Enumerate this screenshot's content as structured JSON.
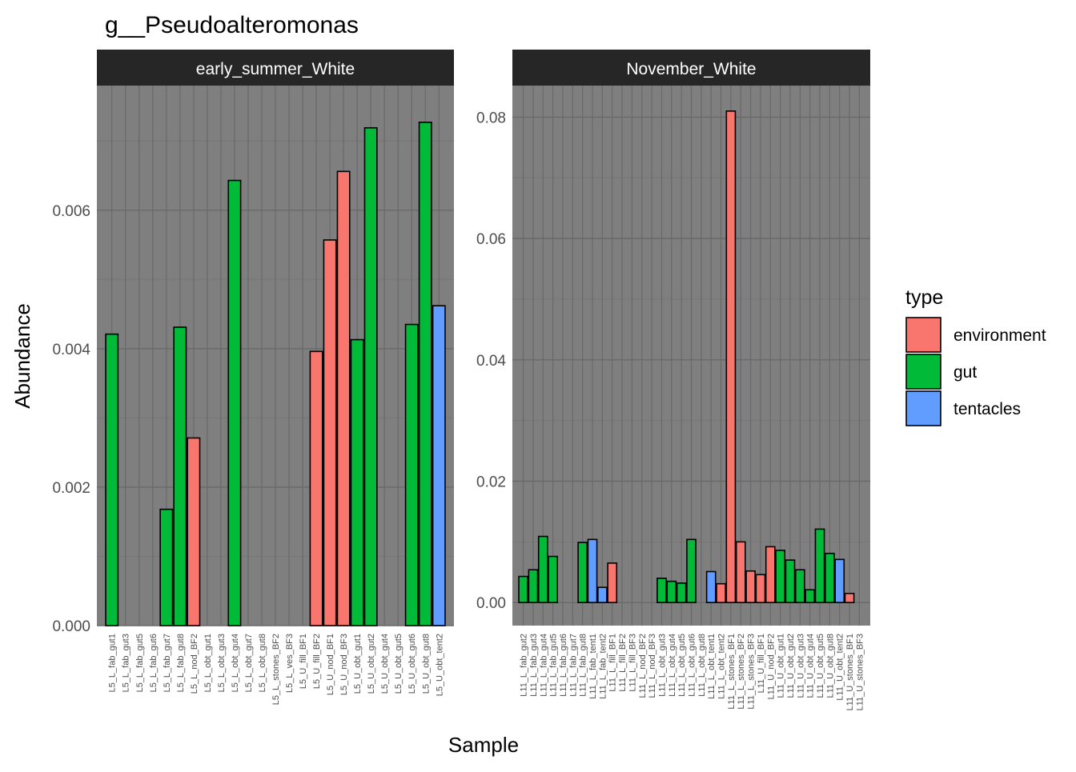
{
  "colors": {
    "environment": "#F8766D",
    "gut": "#00BA38",
    "tentacles": "#619CFF",
    "panel_background": "#7f7f7f",
    "strip_background": "#262626",
    "grid_major": "#696969",
    "grid_minor": "#767676"
  },
  "legend": {
    "title": "type",
    "items": [
      {
        "key": "environment",
        "label": "environment"
      },
      {
        "key": "gut",
        "label": "gut"
      },
      {
        "key": "tentacles",
        "label": "tentacles"
      }
    ]
  },
  "chart_data": {
    "type": "bar",
    "title": "g__Pseudoalteromonas",
    "xlabel": "Sample",
    "ylabel": "Abundance",
    "grid": true,
    "legend_position": "right",
    "facets": [
      {
        "name": "early_summer_White",
        "ylim": [
          0,
          0.0078
        ],
        "y_breaks": [
          0,
          0.002,
          0.004,
          0.006
        ],
        "y_tick_labels": [
          "0.000",
          "0.002",
          "0.004",
          "0.006"
        ],
        "categories": [
          "L5_L_fab_gut1",
          "L5_L_fab_gut3",
          "L5_L_fab_gut5",
          "L5_L_fab_gut6",
          "L5_L_fab_gut7",
          "L5_L_fab_gut8",
          "L5_L_nod_BF2",
          "L5_L_obt_gut1",
          "L5_L_obt_gut3",
          "L5_L_obt_gut4",
          "L5_L_obt_gut7",
          "L5_L_obt_gut8",
          "L5_L_stones_BF2",
          "L5_L_ves_BF3",
          "L5_U_fill_BF1",
          "L5_U_fill_BF2",
          "L5_U_nod_BF1",
          "L5_U_nod_BF3",
          "L5_U_obt_gut1",
          "L5_U_obt_gut2",
          "L5_U_obt_gut4",
          "L5_U_obt_gut5",
          "L5_U_obt_gut6",
          "L5_U_obt_gut8",
          "L5_U_obt_tent2"
        ],
        "values": [
          0.00421,
          0,
          0,
          0,
          0.00168,
          0.00431,
          0.00271,
          0,
          0,
          0.00643,
          0,
          0,
          0,
          0,
          0,
          0.00396,
          0.00557,
          0.00656,
          0.00413,
          0.00719,
          0,
          0,
          0.00435,
          0.00727,
          0.00462
        ],
        "types": [
          "gut",
          "gut",
          "gut",
          "gut",
          "gut",
          "gut",
          "environment",
          "gut",
          "gut",
          "gut",
          "gut",
          "gut",
          "environment",
          "environment",
          "environment",
          "environment",
          "environment",
          "environment",
          "gut",
          "gut",
          "gut",
          "gut",
          "gut",
          "gut",
          "tentacles"
        ]
      },
      {
        "name": "November_White",
        "ylim": [
          -0.0038,
          0.0852
        ],
        "y_breaks": [
          0,
          0.02,
          0.04,
          0.06,
          0.08
        ],
        "y_tick_labels": [
          "0.00",
          "0.02",
          "0.04",
          "0.06",
          "0.08"
        ],
        "categories": [
          "L11_L_fab_gut2",
          "L11_L_fab_gut3",
          "L11_L_fab_gut4",
          "L11_L_fab_gut5",
          "L11_L_fab_gut6",
          "L11_L_fab_gut7",
          "L11_L_fab_gut8",
          "L11_L_fab_tent1",
          "L11_L_fab_tent2",
          "L11_L_fill_BF1",
          "L11_L_fill_BF2",
          "L11_L_fill_BF3",
          "L11_L_nod_BF2",
          "L11_L_nod_BF3",
          "L11_L_obt_gut3",
          "L11_L_obt_gut4",
          "L11_L_obt_gut5",
          "L11_L_obt_gut6",
          "L11_L_obt_gut8",
          "L11_L_obt_tent1",
          "L11_L_obt_tent2",
          "L11_L_stones_BF1",
          "L11_L_stones_BF2",
          "L11_L_stones_BF3",
          "L11_U_fill_BF1",
          "L11_U_nod_BF2",
          "L11_U_obt_gut1",
          "L11_U_obt_gut2",
          "L11_U_obt_gut3",
          "L11_U_obt_gut4",
          "L11_U_obt_gut5",
          "L11_U_obt_gut8",
          "L11_U_obt_tent2",
          "L11_U_stones_BF1",
          "L11_U_stones_BF3"
        ],
        "values": [
          0.0043,
          0.0054,
          0.0109,
          0.0076,
          0,
          0,
          0.0099,
          0.0104,
          0.0025,
          0.0065,
          0,
          0,
          0,
          0,
          0.004,
          0.0035,
          0.0032,
          0.0104,
          0,
          0.0051,
          0.0031,
          0.081,
          0.01,
          0.0052,
          0.0046,
          0.0092,
          0.0086,
          0.007,
          0.0054,
          0.0021,
          0.0121,
          0.0081,
          0.0071,
          0.0015,
          0
        ],
        "types": [
          "gut",
          "gut",
          "gut",
          "gut",
          "gut",
          "gut",
          "gut",
          "tentacles",
          "tentacles",
          "environment",
          "environment",
          "environment",
          "environment",
          "environment",
          "gut",
          "gut",
          "gut",
          "gut",
          "gut",
          "tentacles",
          "environment",
          "environment",
          "environment",
          "environment",
          "environment",
          "environment",
          "gut",
          "gut",
          "gut",
          "gut",
          "gut",
          "gut",
          "tentacles",
          "environment",
          "environment"
        ]
      }
    ]
  }
}
